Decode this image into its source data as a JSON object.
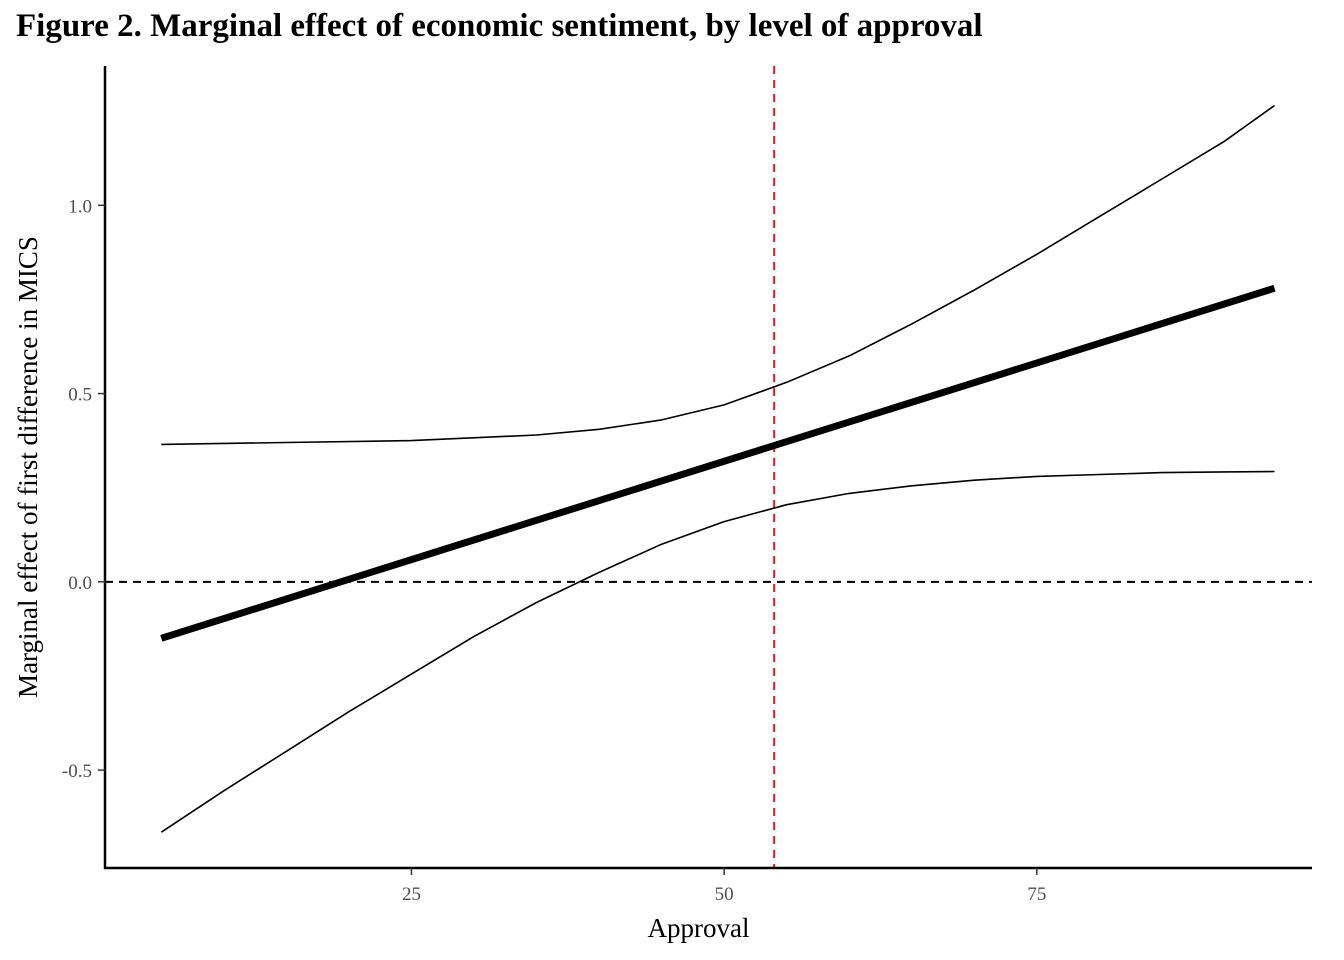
{
  "figure": {
    "title": "Figure 2. Marginal effect of economic sentiment, by level of approval"
  },
  "chart_data": {
    "type": "line",
    "title": "Figure 2. Marginal effect of economic sentiment, by level of approval",
    "xlabel": "Approval",
    "ylabel": "Marginal effect of first difference in MICS",
    "xlim": [
      0.5,
      97
    ],
    "ylim": [
      -0.76,
      1.37
    ],
    "xticks": [
      25,
      50,
      75
    ],
    "xtick_labels": [
      "25",
      "50",
      "75"
    ],
    "yticks": [
      -0.5,
      0.0,
      0.5,
      1.0
    ],
    "ytick_labels": [
      "-0.5",
      "0.0",
      "0.5",
      "1.0"
    ],
    "grid": false,
    "legend": "none",
    "series": [
      {
        "role": "estimate",
        "color": "#000000",
        "x": [
          5,
          94
        ],
        "y": [
          -0.15,
          0.78
        ]
      },
      {
        "role": "upper-bound",
        "color": "#000000",
        "x": [
          5,
          15,
          25,
          35,
          40,
          45,
          50,
          55,
          60,
          65,
          70,
          75,
          80,
          85,
          90,
          94
        ],
        "y": [
          0.365,
          0.37,
          0.375,
          0.39,
          0.405,
          0.43,
          0.47,
          0.53,
          0.6,
          0.685,
          0.775,
          0.87,
          0.97,
          1.07,
          1.17,
          1.265
        ]
      },
      {
        "role": "lower-bound",
        "color": "#000000",
        "x": [
          5,
          10,
          15,
          20,
          25,
          30,
          35,
          40,
          45,
          50,
          55,
          60,
          65,
          70,
          75,
          80,
          85,
          90,
          94
        ],
        "y": [
          -0.665,
          -0.555,
          -0.45,
          -0.345,
          -0.245,
          -0.145,
          -0.055,
          0.025,
          0.1,
          0.16,
          0.205,
          0.235,
          0.255,
          0.27,
          0.28,
          0.285,
          0.29,
          0.292,
          0.293
        ]
      }
    ],
    "reference_lines": [
      {
        "orientation": "horizontal",
        "value": 0.0,
        "color": "#000000",
        "style": "dashed"
      },
      {
        "orientation": "vertical",
        "value": 54,
        "color": "#e41a1c",
        "style": "dashed"
      }
    ]
  }
}
